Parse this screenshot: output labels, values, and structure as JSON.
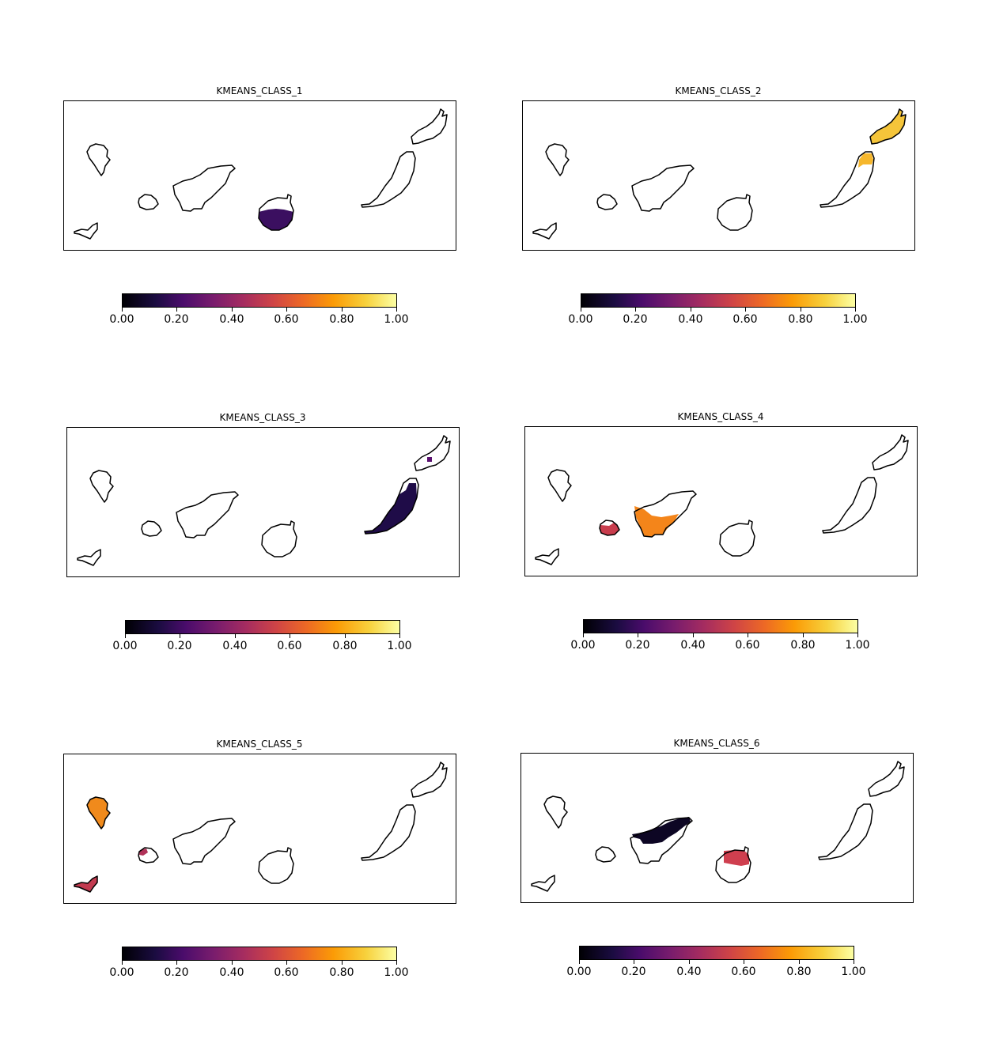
{
  "colormap": "inferno",
  "colormap_stops": [
    "#000004",
    "#1b0c41",
    "#4a0c6b",
    "#781c6d",
    "#a52c60",
    "#cf4446",
    "#ed6925",
    "#fb9b06",
    "#f7d13d",
    "#fcffa4"
  ],
  "colorbar_ticks": [
    "0.00",
    "0.20",
    "0.40",
    "0.60",
    "0.80",
    "1.00"
  ],
  "panels": [
    {
      "title": "KMEANS_CLASS_1",
      "filled": [
        {
          "island": "gran_canaria",
          "color": "#3b0f60",
          "value": 0.2
        }
      ]
    },
    {
      "title": "KMEANS_CLASS_2",
      "filled": [
        {
          "island": "lanzarote",
          "color": "#f5c53a",
          "value": 0.87
        },
        {
          "island": "fuerteventura_north",
          "color": "#f6b72c",
          "value": 0.85
        }
      ]
    },
    {
      "title": "KMEANS_CLASS_3",
      "filled": [
        {
          "island": "fuerteventura",
          "color": "#1f0c48",
          "value": 0.12
        },
        {
          "island": "lanzarote_spot",
          "color": "#5a1170",
          "value": 0.27
        }
      ]
    },
    {
      "title": "KMEANS_CLASS_4",
      "filled": [
        {
          "island": "tenerife_south",
          "color": "#f4851a",
          "value": 0.72
        },
        {
          "island": "la_gomera",
          "color": "#c83d4d",
          "value": 0.55
        }
      ]
    },
    {
      "title": "KMEANS_CLASS_5",
      "filled": [
        {
          "island": "la_palma",
          "color": "#f08a1c",
          "value": 0.72
        },
        {
          "island": "el_hierro",
          "color": "#c23b50",
          "value": 0.53
        },
        {
          "island": "la_gomera_spot",
          "color": "#b03258",
          "value": 0.5
        }
      ]
    },
    {
      "title": "KMEANS_CLASS_6",
      "filled": [
        {
          "island": "tenerife_north",
          "color": "#0d0624",
          "value": 0.05
        },
        {
          "island": "gran_canaria_north",
          "color": "#cf3f4f",
          "value": 0.58
        }
      ]
    }
  ]
}
